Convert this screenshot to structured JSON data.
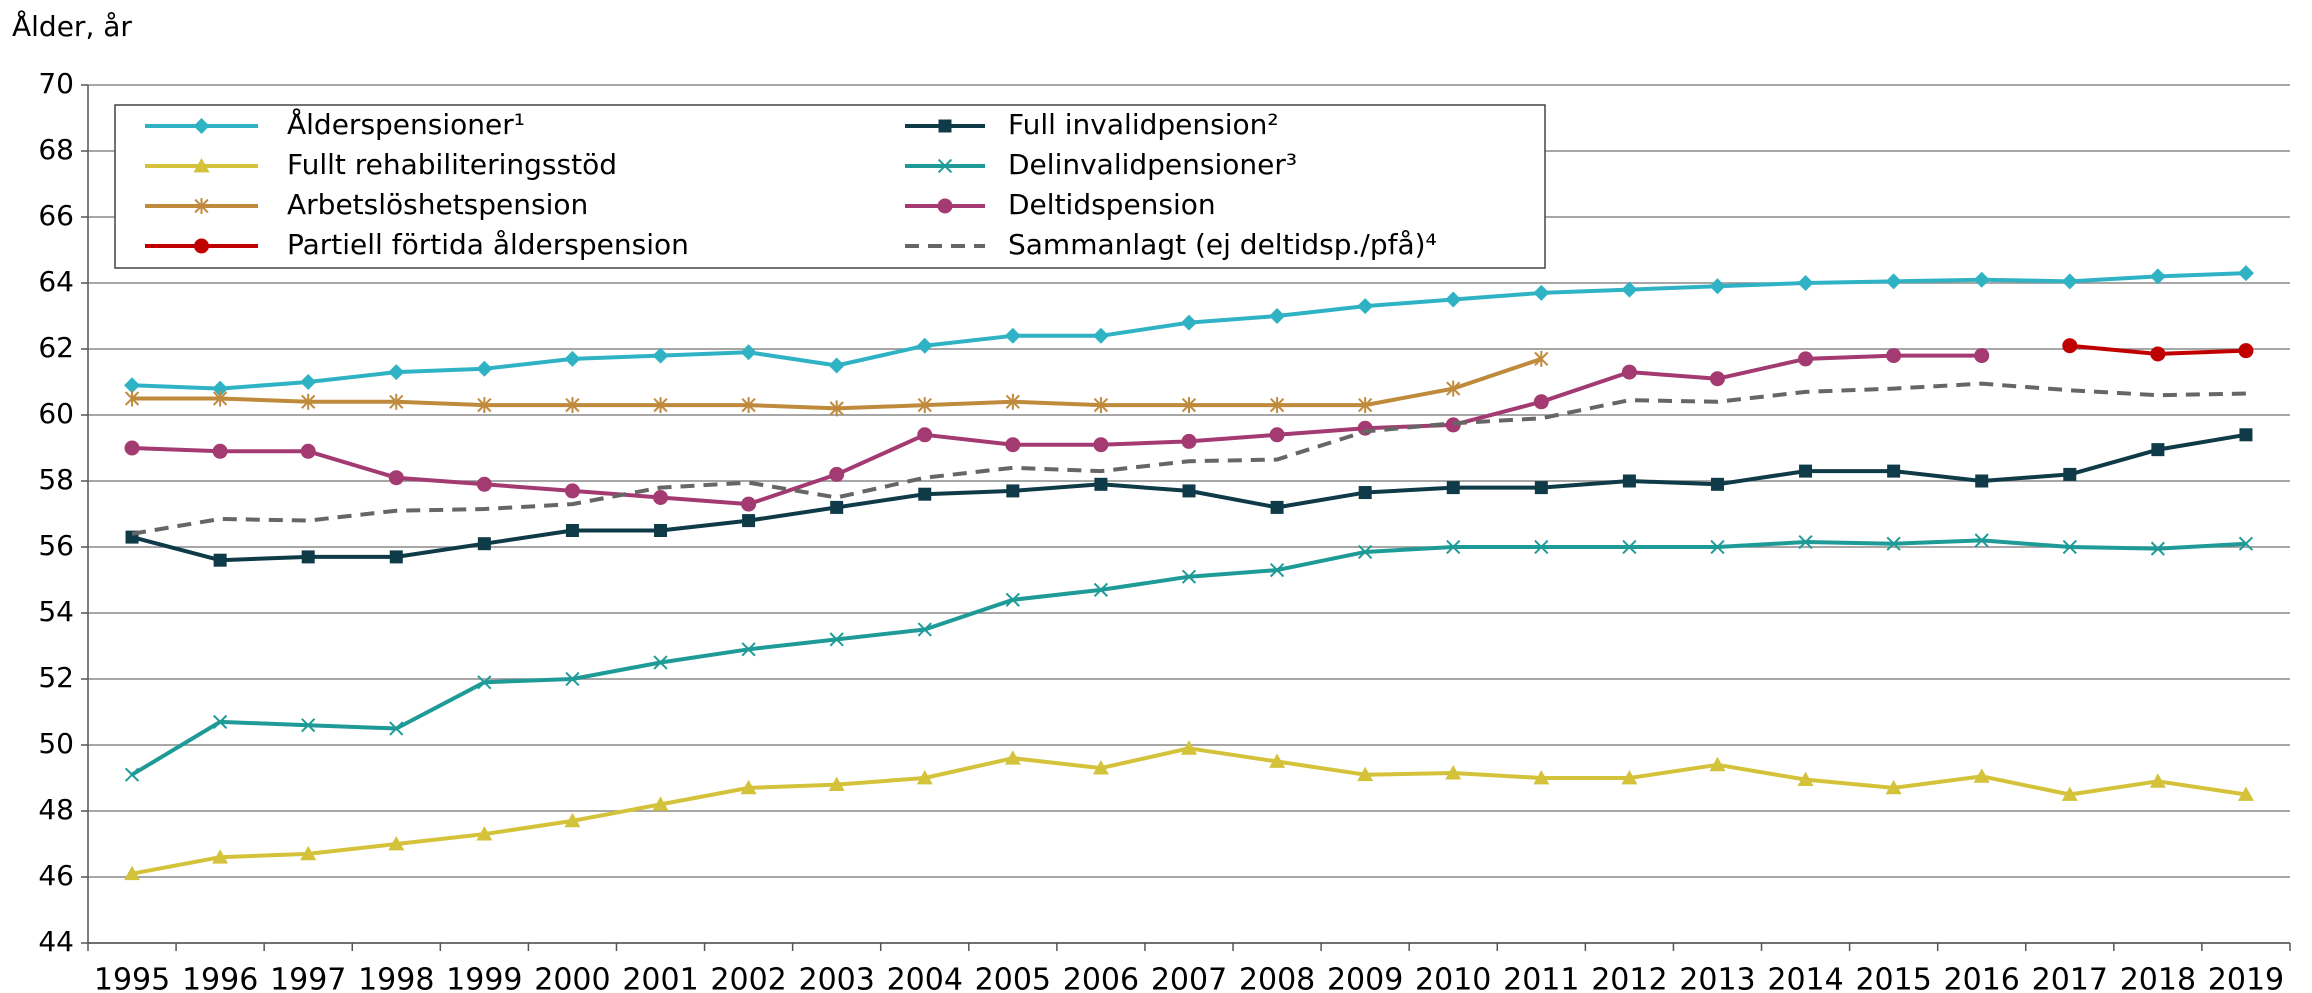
{
  "chart_data": {
    "type": "line",
    "y_axis_label": "Ålder, år",
    "categories": [
      "1995",
      "1996",
      "1997",
      "1998",
      "1999",
      "2000",
      "2001",
      "2002",
      "2003",
      "2004",
      "2005",
      "2006",
      "2007",
      "2008",
      "2009",
      "2010",
      "2011",
      "2012",
      "2013",
      "2014",
      "2015",
      "2016",
      "2017",
      "2018",
      "2019"
    ],
    "ylim": [
      44,
      70
    ],
    "yticks": [
      44,
      46,
      48,
      50,
      52,
      54,
      56,
      58,
      60,
      62,
      64,
      66,
      68,
      70
    ],
    "grid": true,
    "legend": "top-left",
    "series": [
      {
        "name": "Ålderspensioner¹",
        "color": "#2fb3c4",
        "marker": "diamond",
        "values": [
          60.9,
          60.8,
          61.0,
          61.3,
          61.4,
          61.7,
          61.8,
          61.9,
          61.5,
          62.1,
          62.4,
          62.4,
          62.8,
          63.0,
          63.3,
          63.5,
          63.7,
          63.8,
          63.9,
          64.0,
          64.05,
          64.1,
          64.05,
          64.2,
          64.3
        ]
      },
      {
        "name": "Full invalidpension²",
        "color": "#0f3a48",
        "marker": "square",
        "values": [
          56.3,
          55.6,
          55.7,
          55.7,
          56.1,
          56.5,
          56.5,
          56.8,
          57.2,
          57.6,
          57.7,
          57.9,
          57.7,
          57.2,
          57.65,
          57.8,
          57.8,
          58.0,
          57.9,
          58.3,
          58.3,
          58.0,
          58.2,
          58.95,
          59.4
        ]
      },
      {
        "name": "Fullt rehabiliteringsstöd",
        "color": "#d3c23a",
        "marker": "triangle",
        "values": [
          46.1,
          46.6,
          46.7,
          47.0,
          47.3,
          47.7,
          48.2,
          48.7,
          48.8,
          49.0,
          49.6,
          49.3,
          49.9,
          49.5,
          49.1,
          49.15,
          49.0,
          49.0,
          49.4,
          48.95,
          48.7,
          49.05,
          48.5,
          48.9,
          48.5
        ]
      },
      {
        "name": "Delinvalidpensioner³",
        "color": "#1e9b97",
        "marker": "x",
        "values": [
          49.1,
          50.7,
          50.6,
          50.5,
          51.9,
          52.0,
          52.5,
          52.9,
          53.2,
          53.5,
          54.4,
          54.7,
          55.1,
          55.3,
          55.85,
          56.0,
          56.0,
          56.0,
          56.0,
          56.15,
          56.1,
          56.2,
          56.0,
          55.95,
          56.1
        ]
      },
      {
        "name": "Arbetslöshetspension",
        "color": "#bf8a3c",
        "marker": "asterisk",
        "values": [
          60.5,
          60.5,
          60.4,
          60.4,
          60.3,
          60.3,
          60.3,
          60.3,
          60.2,
          60.3,
          60.4,
          60.3,
          60.3,
          60.3,
          60.3,
          60.8,
          61.7,
          null,
          null,
          null,
          null,
          null,
          null,
          null,
          null
        ]
      },
      {
        "name": "Deltidspension",
        "color": "#a33a72",
        "marker": "circle",
        "values": [
          59.0,
          58.9,
          58.9,
          58.1,
          57.9,
          57.7,
          57.5,
          57.3,
          58.2,
          59.4,
          59.1,
          59.1,
          59.2,
          59.4,
          59.6,
          59.7,
          60.4,
          61.3,
          61.1,
          61.7,
          61.8,
          61.8,
          null,
          null,
          null
        ]
      },
      {
        "name": "Partiell förtida ålderspension",
        "color": "#c00000",
        "marker": "circle",
        "values": [
          null,
          null,
          null,
          null,
          null,
          null,
          null,
          null,
          null,
          null,
          null,
          null,
          null,
          null,
          null,
          null,
          null,
          null,
          null,
          null,
          null,
          null,
          62.1,
          61.85,
          61.95
        ]
      },
      {
        "name": "Sammanlagt (ej deltidsp./pfå)⁴",
        "color": "#666666",
        "marker": "none",
        "dash": true,
        "values": [
          56.4,
          56.85,
          56.8,
          57.1,
          57.15,
          57.3,
          57.8,
          57.95,
          57.5,
          58.1,
          58.4,
          58.3,
          58.6,
          58.65,
          59.5,
          59.75,
          59.9,
          60.45,
          60.4,
          60.7,
          60.8,
          60.95,
          60.75,
          60.6,
          60.65
        ]
      }
    ]
  }
}
